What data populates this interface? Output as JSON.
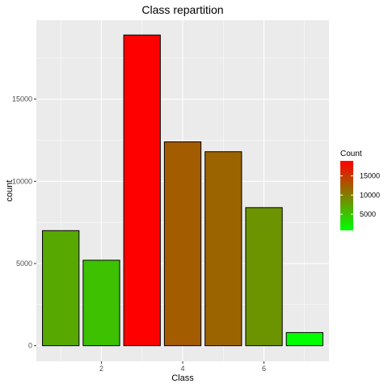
{
  "chart_data": {
    "type": "bar",
    "title": "Class repartition",
    "xlabel": "Class",
    "ylabel": "count",
    "x": [
      1,
      2,
      3,
      4,
      5,
      6,
      7
    ],
    "values": [
      7000,
      5200,
      18900,
      12400,
      11800,
      8400,
      800
    ],
    "xlim": [
      0.4,
      7.6
    ],
    "ylim": [
      -950,
      19800
    ],
    "xticks": [
      2,
      4,
      6
    ],
    "yticks": [
      0,
      5000,
      10000,
      15000
    ],
    "grid": true,
    "legend": {
      "title": "Count",
      "placement": "right",
      "type": "colorbar",
      "range": [
        800,
        18900
      ],
      "ticks": [
        5000,
        10000,
        15000
      ],
      "colors": {
        "low": "#00ff00",
        "high": "#ff0000"
      }
    },
    "colors": {
      "panel": "#ebebeb",
      "grid_major": "#ffffff",
      "bar_outline": "#000000"
    }
  }
}
